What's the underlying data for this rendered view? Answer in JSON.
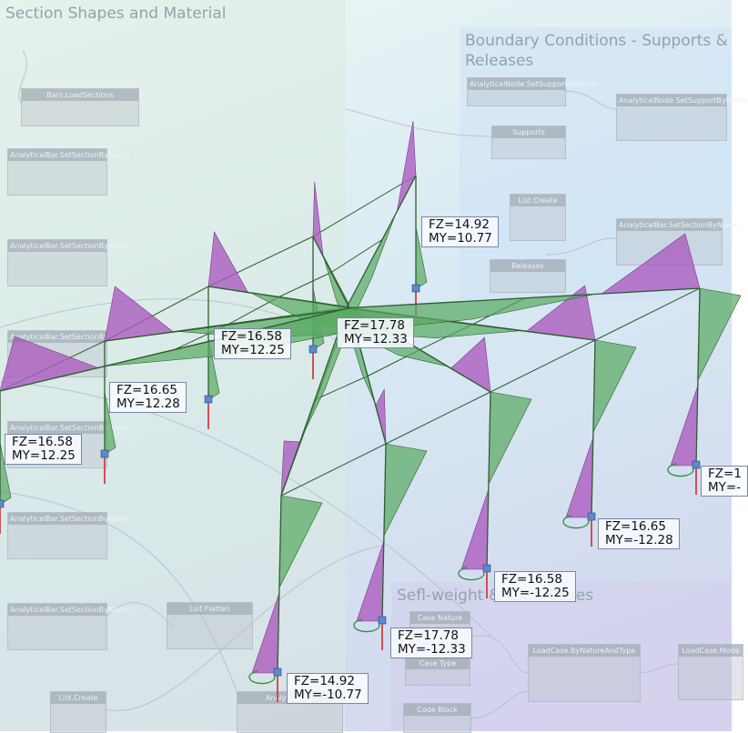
{
  "groups": [
    {
      "title": "Section Shapes and Material"
    },
    {
      "title": "Boundary Conditions - Supports & Releases"
    },
    {
      "title": "Sefl-weight & Load Cases"
    }
  ],
  "nodes": [
    {
      "title": "Bars.LoadSections"
    },
    {
      "title": "AnalyticalBar.SetSectionByName"
    },
    {
      "title": "AnalyticalBar.SetSectionByName"
    },
    {
      "title": "AnalyticalBar.SetSectionByName"
    },
    {
      "title": "AnalyticalBar.SetSectionByName"
    },
    {
      "title": "AnalyticalBar.SetSectionByName"
    },
    {
      "title": "AnalyticalBar.SetSectionByName"
    },
    {
      "title": "AnalyticalNode.SetSupportByName"
    },
    {
      "title": "AnalyticalNode.SetSupportByName"
    },
    {
      "title": "Supports"
    },
    {
      "title": "List.Create"
    },
    {
      "title": "AnalyticalBar.SetSectionByName"
    },
    {
      "title": "Releases"
    },
    {
      "title": "List.Flatten"
    },
    {
      "title": "List.Create"
    },
    {
      "title": "Case Nature"
    },
    {
      "title": "Case Type"
    },
    {
      "title": "Code Block"
    },
    {
      "title": "LoadCase.ByNatureAndType"
    },
    {
      "title": "LoadCase.Mode"
    },
    {
      "title": "AnalyticalBar"
    }
  ],
  "results": [
    {
      "fz": "FZ=14.92",
      "my": "MY=10.77"
    },
    {
      "fz": "FZ=17.78",
      "my": "MY=12.33"
    },
    {
      "fz": "FZ=16.58",
      "my": "MY=12.25"
    },
    {
      "fz": "FZ=16.65",
      "my": "MY=12.28"
    },
    {
      "fz": "FZ=16.58",
      "my": "MY=12.25"
    },
    {
      "fz": "FZ=16.65",
      "my": "MY=-12.28"
    },
    {
      "fz": "FZ=16.58",
      "my": "MY=-12.25"
    },
    {
      "fz": "FZ=17.78",
      "my": "MY=-12.33"
    },
    {
      "fz": "FZ=14.92",
      "my": "MY=-10.77"
    },
    {
      "fz": "FZ=1",
      "my": "MY=-"
    }
  ]
}
